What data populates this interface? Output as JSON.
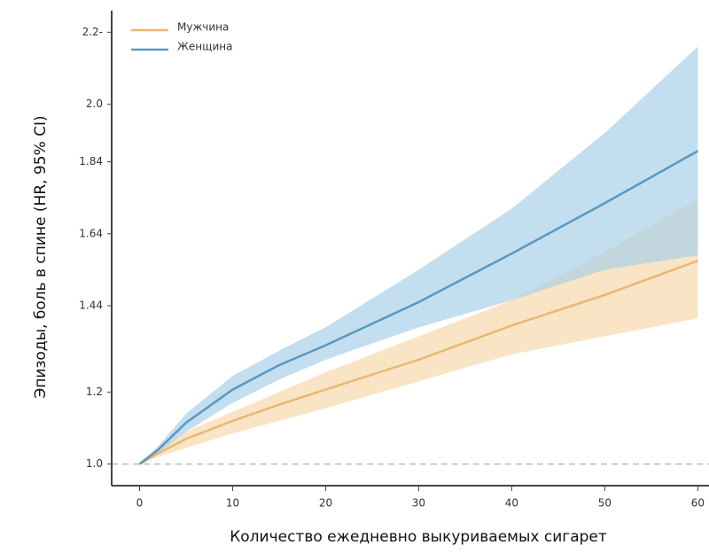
{
  "chart_data": {
    "type": "line",
    "xlabel": "Количество ежедневно выкуриваемых сигарет",
    "ylabel": "Эпизоды, боль в спине (HR, 95% CI)",
    "x": [
      0,
      2,
      5,
      10,
      15,
      20,
      30,
      40,
      50,
      60
    ],
    "series": [
      {
        "name": "Мужчина",
        "color": "#e9b772",
        "band_color": "#f7d9ad",
        "values": [
          1.0,
          1.03,
          1.07,
          1.12,
          1.165,
          1.207,
          1.29,
          1.385,
          1.47,
          1.565
        ],
        "lower": [
          1.0,
          1.02,
          1.045,
          1.085,
          1.12,
          1.155,
          1.23,
          1.305,
          1.355,
          1.405
        ],
        "upper": [
          1.0,
          1.04,
          1.09,
          1.145,
          1.2,
          1.255,
          1.355,
          1.455,
          1.59,
          1.735
        ]
      },
      {
        "name": "Женщина",
        "color": "#5a98c2",
        "band_color": "#a9d0e7",
        "values": [
          1.0,
          1.04,
          1.115,
          1.207,
          1.275,
          1.33,
          1.45,
          1.585,
          1.725,
          1.87
        ],
        "lower": [
          1.0,
          1.03,
          1.09,
          1.17,
          1.235,
          1.29,
          1.38,
          1.455,
          1.54,
          1.58
        ],
        "upper": [
          1.0,
          1.05,
          1.14,
          1.245,
          1.315,
          1.38,
          1.54,
          1.71,
          1.92,
          2.16
        ]
      }
    ],
    "reference_line": 1.0,
    "xlim": [
      -3,
      61.2
    ],
    "ylim": [
      0.94,
      2.26
    ],
    "xticks": [
      0,
      10,
      20,
      30,
      40,
      50,
      60
    ],
    "yticks": [
      {
        "value": 2.2,
        "label": "2.2-"
      },
      {
        "value": 2.0,
        "label": "2.0"
      },
      {
        "value": 1.84,
        "label": "1.84"
      },
      {
        "value": 1.64,
        "label": "1.64"
      },
      {
        "value": 1.44,
        "label": "1.44"
      },
      {
        "value": 1.2,
        "label": "1.2"
      },
      {
        "value": 1.0,
        "label": "1.0"
      }
    ],
    "legend": "upper left"
  }
}
